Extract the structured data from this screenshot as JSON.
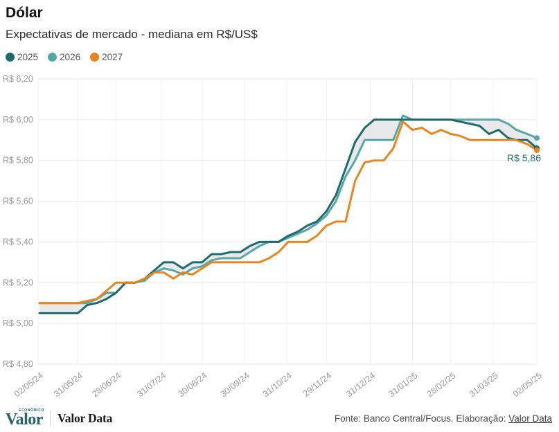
{
  "header": {
    "title": "Dólar",
    "subtitle": "Expectativas de mercado - mediana em R$/US$"
  },
  "annotation": {
    "label": "R$ 5,86",
    "series": "2025"
  },
  "footer": {
    "logo_text": "Valor",
    "logo_sup": "ECONÔMICO",
    "brand": "Valor Data",
    "source_prefix": "Fonte: Banco Central/Focus. Elaboração: ",
    "source_link": "Valor Data"
  },
  "chart_data": {
    "type": "line",
    "title": "Dólar",
    "subtitle": "Expectativas de mercado - mediana em R$/US$",
    "xlabel": "",
    "ylabel": "R$/US$",
    "ylim": [
      4.8,
      6.2
    ],
    "grid": true,
    "legend_position": "top",
    "band_between": [
      "2025",
      "2026"
    ],
    "band_color": "#e4e4e4",
    "dates": [
      "03/05/24",
      "10/05/24",
      "17/05/24",
      "24/05/24",
      "31/05/24",
      "07/06/24",
      "14/06/24",
      "21/06/24",
      "28/06/24",
      "05/07/24",
      "12/07/24",
      "19/07/24",
      "26/07/24",
      "02/08/24",
      "09/08/24",
      "16/08/24",
      "23/08/24",
      "30/08/24",
      "06/09/24",
      "13/09/24",
      "20/09/24",
      "27/09/24",
      "04/10/24",
      "11/10/24",
      "18/10/24",
      "25/10/24",
      "01/11/24",
      "08/11/24",
      "15/11/24",
      "22/11/24",
      "29/11/24",
      "06/12/24",
      "13/12/24",
      "20/12/24",
      "27/12/24",
      "03/01/25",
      "10/01/25",
      "17/01/25",
      "24/01/25",
      "31/01/25",
      "07/02/25",
      "14/02/25",
      "21/02/25",
      "28/02/25",
      "07/03/25",
      "14/03/25",
      "21/03/25",
      "28/03/25",
      "04/04/25",
      "11/04/25",
      "17/04/25",
      "25/04/25",
      "02/05/25"
    ],
    "series": [
      {
        "name": "2025",
        "color": "#1e6b6e",
        "values": [
          5.05,
          5.05,
          5.05,
          5.05,
          5.05,
          5.09,
          5.1,
          5.12,
          5.15,
          5.2,
          5.2,
          5.22,
          5.26,
          5.3,
          5.3,
          5.27,
          5.3,
          5.3,
          5.34,
          5.34,
          5.35,
          5.35,
          5.38,
          5.4,
          5.4,
          5.4,
          5.43,
          5.45,
          5.48,
          5.5,
          5.55,
          5.63,
          5.76,
          5.89,
          5.96,
          6.0,
          6.0,
          6.0,
          6.0,
          6.0,
          6.0,
          6.0,
          6.0,
          6.0,
          5.99,
          5.98,
          5.97,
          5.93,
          5.95,
          5.91,
          5.9,
          5.9,
          5.86
        ]
      },
      {
        "name": "2026",
        "color": "#56a7a9",
        "values": [
          5.1,
          5.1,
          5.1,
          5.1,
          5.1,
          5.1,
          5.12,
          5.15,
          5.15,
          5.2,
          5.2,
          5.21,
          5.25,
          5.27,
          5.26,
          5.24,
          5.27,
          5.28,
          5.31,
          5.32,
          5.32,
          5.32,
          5.35,
          5.38,
          5.4,
          5.4,
          5.42,
          5.44,
          5.46,
          5.49,
          5.53,
          5.6,
          5.72,
          5.8,
          5.9,
          5.9,
          5.9,
          5.9,
          6.02,
          6.0,
          6.0,
          6.0,
          6.0,
          6.0,
          6.0,
          6.0,
          6.0,
          6.0,
          6.0,
          5.98,
          5.95,
          5.93,
          5.91
        ]
      },
      {
        "name": "2027",
        "color": "#e8861d",
        "values": [
          5.1,
          5.1,
          5.1,
          5.1,
          5.1,
          5.11,
          5.12,
          5.16,
          5.2,
          5.2,
          5.2,
          5.22,
          5.25,
          5.25,
          5.22,
          5.25,
          5.24,
          5.27,
          5.3,
          5.3,
          5.3,
          5.3,
          5.3,
          5.3,
          5.32,
          5.35,
          5.4,
          5.4,
          5.4,
          5.43,
          5.48,
          5.5,
          5.5,
          5.7,
          5.79,
          5.8,
          5.8,
          5.86,
          5.99,
          5.95,
          5.96,
          5.93,
          5.95,
          5.93,
          5.92,
          5.9,
          5.9,
          5.9,
          5.9,
          5.9,
          5.9,
          5.88,
          5.85
        ]
      }
    ],
    "y_ticks": [
      {
        "v": 6.2,
        "label": "R$ 6,20"
      },
      {
        "v": 6.0,
        "label": "R$ 6,00"
      },
      {
        "v": 5.8,
        "label": "R$ 5,80"
      },
      {
        "v": 5.6,
        "label": "R$ 5,60"
      },
      {
        "v": 5.4,
        "label": "R$ 5,40"
      },
      {
        "v": 5.2,
        "label": "R$ 5,20"
      },
      {
        "v": 5.0,
        "label": "R$ 5,00"
      },
      {
        "v": 4.8,
        "label": "R$ 4,80"
      }
    ],
    "x_ticks": [
      {
        "date": "02/05/24",
        "label": "02/05/24"
      },
      {
        "date": "31/05/24",
        "label": "31/05/24"
      },
      {
        "date": "28/06/24",
        "label": "28/06/24"
      },
      {
        "date": "31/07/24",
        "label": "31/07/24"
      },
      {
        "date": "30/08/24",
        "label": "30/08/24"
      },
      {
        "date": "30/09/24",
        "label": "30/09/24"
      },
      {
        "date": "31/10/24",
        "label": "31/10/24"
      },
      {
        "date": "29/11/24",
        "label": "29/11/24"
      },
      {
        "date": "31/12/24",
        "label": "31/12/24"
      },
      {
        "date": "31/01/25",
        "label": "31/01/25"
      },
      {
        "date": "28/02/25",
        "label": "28/02/25"
      },
      {
        "date": "31/03/25",
        "label": "31/03/25"
      },
      {
        "date": "02/05/25",
        "label": "02/05/25"
      }
    ]
  }
}
